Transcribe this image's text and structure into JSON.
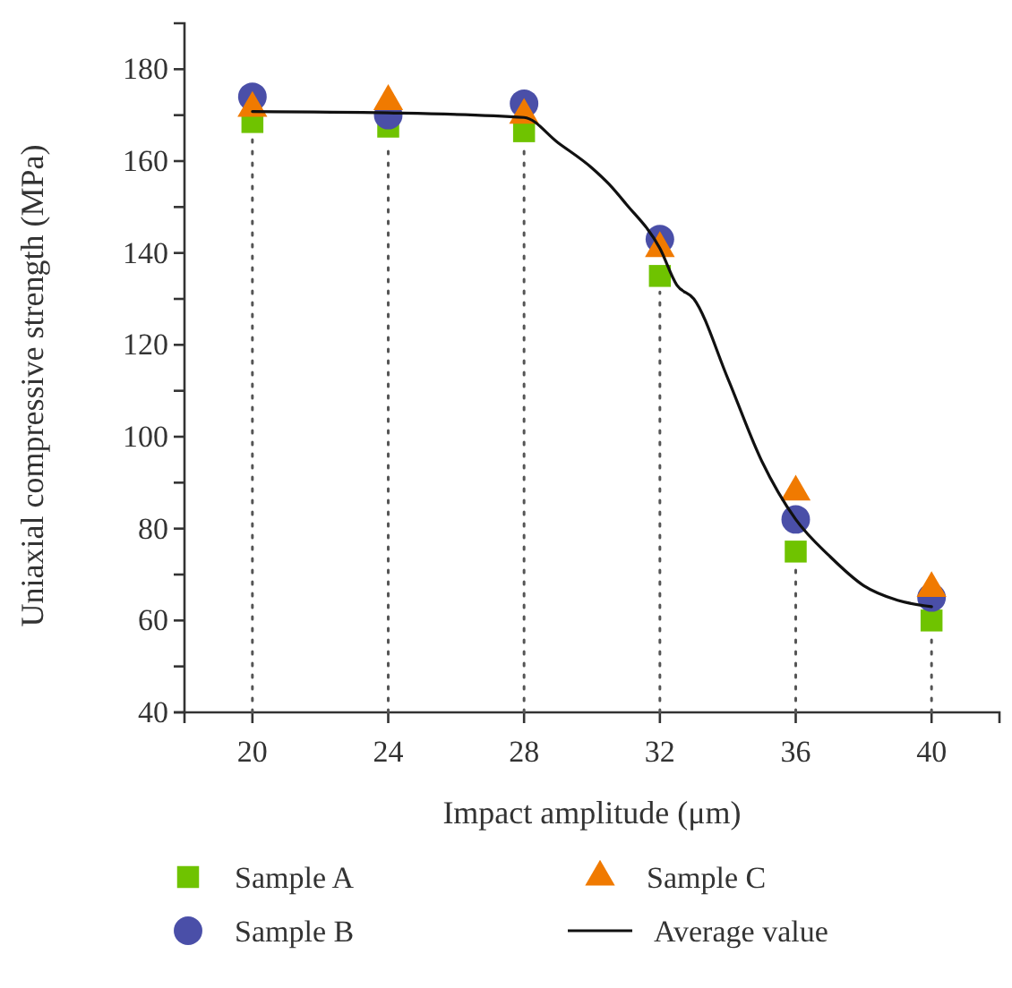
{
  "chart_data": {
    "type": "scatter",
    "xlabel": "Impact amplitude (μm)",
    "ylabel": "Uniaxial compressive strength (MPa)",
    "xlim": [
      18,
      42
    ],
    "xticks": [
      20,
      24,
      28,
      32,
      36,
      40
    ],
    "ylim": [
      40,
      190
    ],
    "yticks": [
      40,
      {
        "value": 50,
        "label": null
      },
      60,
      {
        "value": 70,
        "label": null
      },
      80,
      {
        "value": 90,
        "label": null
      },
      100,
      {
        "value": 110,
        "label": null
      },
      120,
      {
        "value": 130,
        "label": null
      },
      140,
      {
        "value": 150,
        "label": null
      },
      160,
      {
        "value": 170,
        "label": null
      },
      180
    ],
    "series": [
      {
        "name": "Sample A",
        "color": "#6fc300",
        "marker": "square",
        "x": [
          20,
          24,
          28,
          32,
          36,
          40
        ],
        "values": [
          168.5,
          167.5,
          166.5,
          135,
          75,
          60
        ]
      },
      {
        "name": "Sample B",
        "color": "#4a4fa8",
        "marker": "circle",
        "x": [
          20,
          24,
          28,
          32,
          36,
          40
        ],
        "values": [
          174,
          170,
          172.5,
          143,
          82,
          65
        ]
      },
      {
        "name": "Sample C",
        "color": "#f07a00",
        "marker": "triangle",
        "x": [
          20,
          24,
          28,
          32,
          36,
          40
        ],
        "values": [
          171.5,
          173,
          170,
          141,
          88,
          67
        ]
      },
      {
        "name": "Average value",
        "type": "line",
        "color": "#111111",
        "marker": "none",
        "x": [
          20,
          24,
          28,
          29,
          30,
          30.5,
          31,
          32,
          32.5,
          33,
          34,
          35,
          36,
          37,
          38,
          39,
          40
        ],
        "values": [
          170.8,
          170.5,
          169.5,
          164,
          158.5,
          155,
          150.7,
          141,
          133,
          130,
          112.7,
          94.7,
          82,
          74,
          67.6,
          64.4,
          63
        ]
      }
    ],
    "ref_lines": [
      {
        "axis": "x",
        "value": 20,
        "line_style": "dotted",
        "color": "#555555"
      },
      {
        "axis": "x",
        "value": 24,
        "line_style": "dotted",
        "color": "#555555"
      },
      {
        "axis": "x",
        "value": 28,
        "line_style": "dotted",
        "color": "#555555"
      },
      {
        "axis": "x",
        "value": 32,
        "line_style": "dotted",
        "color": "#555555"
      },
      {
        "axis": "x",
        "value": 36,
        "line_style": "dotted",
        "color": "#555555"
      },
      {
        "axis": "x",
        "value": 40,
        "line_style": "dotted",
        "color": "#555555"
      }
    ],
    "grid": false,
    "legend": "bottom"
  }
}
